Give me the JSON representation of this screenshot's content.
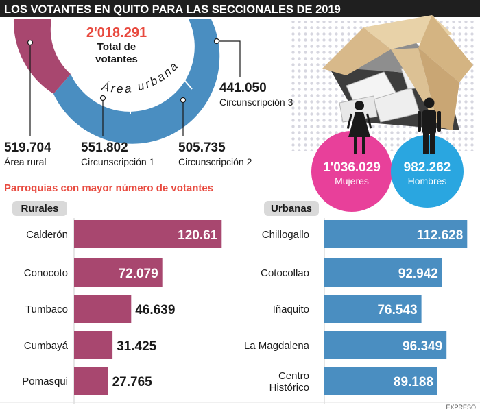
{
  "header": {
    "title": "LOS VOTANTES EN QUITO PARA LAS SECCIONALES DE 2019"
  },
  "total": {
    "value": "2'018.291",
    "label_line1": "Total de",
    "label_line2": "votantes"
  },
  "ring": {
    "arc_label": "Área urbana",
    "segments": [
      {
        "value": "519.704",
        "label": "Área rural",
        "color": "#a8476f"
      },
      {
        "value": "551.802",
        "label": "Circunscripción 1",
        "color": "#4a8ec1"
      },
      {
        "value": "505.735",
        "label": "Circunscripción 2",
        "color": "#4a8ec1"
      },
      {
        "value": "441.050",
        "label": "Circunscripción 3",
        "color": "#4a8ec1"
      }
    ]
  },
  "gender": {
    "women": {
      "value": "1'036.029",
      "label": "Mujeres",
      "color": "#e8409a"
    },
    "men": {
      "value": "982.262",
      "label": "Hombres",
      "color": "#2aa6e0"
    }
  },
  "section_title": "Parroquias con mayor número de votantes",
  "footer": {
    "credit": "EXPRESO"
  },
  "chart_data": [
    {
      "type": "bar",
      "title": "Rurales",
      "categories": [
        "Calderón",
        "Conocoto",
        "Tumbaco",
        "Cumbayá",
        "Pomasqui"
      ],
      "values": [
        120.61,
        72.079,
        46.639,
        31.425,
        27.765
      ],
      "labels": [
        "120.61",
        "72.079",
        "46.639",
        "31.425",
        "27.765"
      ],
      "color": "#a8476f"
    },
    {
      "type": "bar",
      "title": "Urbanas",
      "categories": [
        "Chillogallo",
        "Cotocollao",
        "Iñaquito",
        "La Magdalena",
        "Centro Histórico"
      ],
      "values": [
        112.628,
        92.942,
        76.543,
        96.349,
        89.188
      ],
      "labels": [
        "112.628",
        "92.942",
        "76.543",
        "96.349",
        "89.188"
      ],
      "color": "#4a8ec1"
    }
  ]
}
